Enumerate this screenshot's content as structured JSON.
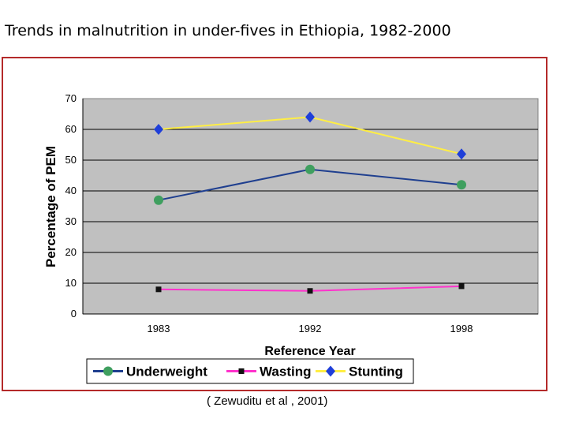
{
  "slide": {
    "title": "Trends in malnutrition in under-fives in Ethiopia, 1982-2000",
    "source": "( Zewuditu et al , 2001)"
  },
  "colors": {
    "plot_background": "#c0c0c0",
    "frame_border": "#b42a2a",
    "underweight_line": "#1f3f8f",
    "underweight_marker": "#3f9f5f",
    "wasting_line": "#ff33cc",
    "wasting_marker": "#111111",
    "stunting_line": "#ffee44",
    "stunting_marker": "#1f3fd9"
  },
  "chart_data": {
    "type": "line",
    "categories": [
      "1983",
      "1992",
      "1998"
    ],
    "xlabel": "Reference Year",
    "ylabel": "Percentage of PEM",
    "ylim": [
      0,
      70
    ],
    "yticks": [
      "0",
      "10",
      "20",
      "30",
      "40",
      "50",
      "60",
      "70"
    ],
    "grid": true,
    "legend_position": "bottom",
    "series": [
      {
        "name": "Underweight",
        "values": [
          37,
          47,
          42
        ],
        "marker": "circle",
        "color_key": "underweight"
      },
      {
        "name": "Wasting",
        "values": [
          8,
          7.5,
          9
        ],
        "marker": "square",
        "color_key": "wasting"
      },
      {
        "name": "Stunting",
        "values": [
          60,
          64,
          52
        ],
        "marker": "diamond",
        "color_key": "stunting"
      }
    ]
  }
}
